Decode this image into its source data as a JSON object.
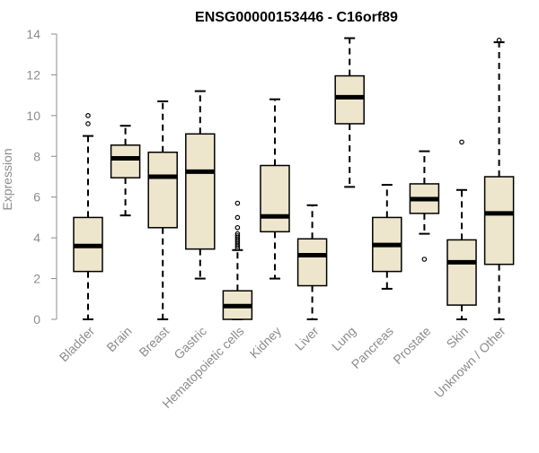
{
  "chart_data": {
    "type": "box",
    "title": "ENSG00000153446 - C16orf89",
    "xlabel": "",
    "ylabel": "Expression",
    "ylim": [
      0,
      14
    ],
    "yticks": [
      0,
      2,
      4,
      6,
      8,
      10,
      12,
      14
    ],
    "grid": false,
    "colors": {
      "box_fill": "#ede6cc",
      "stroke": "#000000",
      "axis_text": "#8c8c8c"
    },
    "categories": [
      "Bladder",
      "Brain",
      "Breast",
      "Gastric",
      "Hematopoietic cells",
      "Kidney",
      "Liver",
      "Lung",
      "Pancreas",
      "Prostate",
      "Skin",
      "Unknown / Other"
    ],
    "boxes": [
      {
        "category": "Bladder",
        "whisker_low": 0.0,
        "q1": 2.35,
        "median": 3.6,
        "q3": 5.0,
        "whisker_high": 9.0,
        "outliers": [
          9.6,
          10.0
        ]
      },
      {
        "category": "Brain",
        "whisker_low": 5.1,
        "q1": 6.95,
        "median": 7.9,
        "q3": 8.55,
        "whisker_high": 9.5,
        "outliers": []
      },
      {
        "category": "Breast",
        "whisker_low": 0.0,
        "q1": 4.5,
        "median": 7.0,
        "q3": 8.2,
        "whisker_high": 10.7,
        "outliers": []
      },
      {
        "category": "Gastric",
        "whisker_low": 2.0,
        "q1": 3.45,
        "median": 7.25,
        "q3": 9.1,
        "whisker_high": 11.2,
        "outliers": []
      },
      {
        "category": "Hematopoietic cells",
        "whisker_low": 0.0,
        "q1": 0.0,
        "median": 0.65,
        "q3": 1.4,
        "whisker_high": 3.4,
        "outliers": [
          3.5,
          3.6,
          3.7,
          3.8,
          3.9,
          4.0,
          4.1,
          4.2,
          4.5,
          5.0,
          5.7
        ]
      },
      {
        "category": "Kidney",
        "whisker_low": 2.0,
        "q1": 4.3,
        "median": 5.05,
        "q3": 7.55,
        "whisker_high": 10.8,
        "outliers": []
      },
      {
        "category": "Liver",
        "whisker_low": 0.0,
        "q1": 1.65,
        "median": 3.15,
        "q3": 3.95,
        "whisker_high": 5.6,
        "outliers": []
      },
      {
        "category": "Lung",
        "whisker_low": 6.5,
        "q1": 9.6,
        "median": 10.9,
        "q3": 11.95,
        "whisker_high": 13.8,
        "outliers": []
      },
      {
        "category": "Pancreas",
        "whisker_low": 1.5,
        "q1": 2.35,
        "median": 3.65,
        "q3": 5.0,
        "whisker_high": 6.6,
        "outliers": []
      },
      {
        "category": "Prostate",
        "whisker_low": 4.2,
        "q1": 5.2,
        "median": 5.9,
        "q3": 6.65,
        "whisker_high": 8.25,
        "outliers": [
          2.95
        ]
      },
      {
        "category": "Skin",
        "whisker_low": 0.0,
        "q1": 0.7,
        "median": 2.8,
        "q3": 3.9,
        "whisker_high": 6.35,
        "outliers": [
          8.7
        ]
      },
      {
        "category": "Unknown / Other",
        "whisker_low": 0.0,
        "q1": 2.7,
        "median": 5.2,
        "q3": 7.0,
        "whisker_high": 13.6,
        "outliers": [
          13.7
        ]
      }
    ]
  }
}
